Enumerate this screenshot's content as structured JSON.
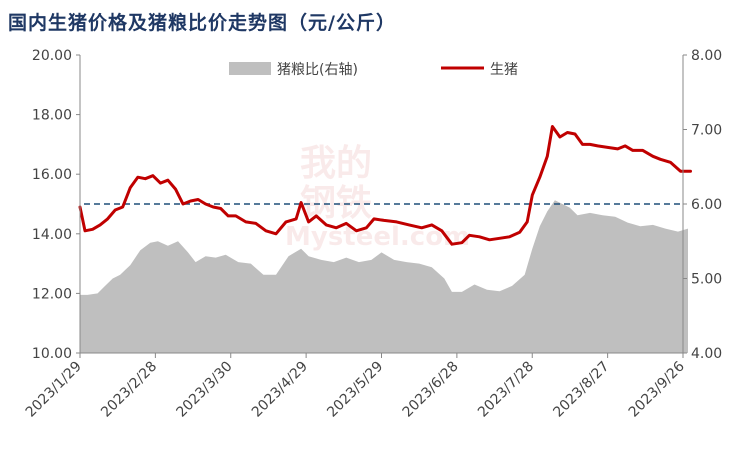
{
  "chart_data": {
    "type": "line",
    "title": "国内生猪价格及猪粮比价走势图（元/公斤）",
    "watermark": {
      "line1": "我的",
      "line2": "钢铁",
      "line3": "Mysteel.com"
    },
    "colors": {
      "line": "#c00000",
      "area": "#bfbfbf",
      "dashed": "#1f4e79",
      "title": "#1f3864"
    },
    "x_tick_labels": [
      "2023/1/29",
      "2023/2/28",
      "2023/3/30",
      "2023/4/29",
      "2023/5/29",
      "2023/6/28",
      "2023/7/28",
      "2023/8/27",
      "2023/9/26"
    ],
    "x_tick_dates": [
      "2023-01-29",
      "2023-02-28",
      "2023-03-30",
      "2023-04-29",
      "2023-05-29",
      "2023-06-28",
      "2023-07-28",
      "2023-08-27",
      "2023-09-26"
    ],
    "y_left": {
      "min": 10,
      "max": 20,
      "ticks": [
        "10.00",
        "12.00",
        "14.00",
        "16.00",
        "18.00",
        "20.00"
      ]
    },
    "y_right": {
      "min": 4,
      "max": 8,
      "ticks": [
        "4.00",
        "5.00",
        "6.00",
        "7.00",
        "8.00"
      ]
    },
    "legend_position": "top-center",
    "reference_line": {
      "axis": "right",
      "value": 6.0,
      "style": "dashed"
    },
    "series": [
      {
        "name": "猪粮比(右轴)",
        "type": "area",
        "axis": "right",
        "points": [
          [
            "2023-01-29",
            4.78
          ],
          [
            "2023-02-01",
            4.78
          ],
          [
            "2023-02-05",
            4.8
          ],
          [
            "2023-02-08",
            4.9
          ],
          [
            "2023-02-11",
            5.0
          ],
          [
            "2023-02-14",
            5.05
          ],
          [
            "2023-02-18",
            5.18
          ],
          [
            "2023-02-22",
            5.38
          ],
          [
            "2023-02-26",
            5.48
          ],
          [
            "2023-03-01",
            5.5
          ],
          [
            "2023-03-05",
            5.44
          ],
          [
            "2023-03-09",
            5.5
          ],
          [
            "2023-03-13",
            5.35
          ],
          [
            "2023-03-16",
            5.22
          ],
          [
            "2023-03-20",
            5.3
          ],
          [
            "2023-03-24",
            5.28
          ],
          [
            "2023-03-28",
            5.32
          ],
          [
            "2023-04-02",
            5.22
          ],
          [
            "2023-04-07",
            5.2
          ],
          [
            "2023-04-12",
            5.05
          ],
          [
            "2023-04-17",
            5.05
          ],
          [
            "2023-04-22",
            5.3
          ],
          [
            "2023-04-27",
            5.4
          ],
          [
            "2023-04-30",
            5.3
          ],
          [
            "2023-05-05",
            5.25
          ],
          [
            "2023-05-10",
            5.22
          ],
          [
            "2023-05-15",
            5.28
          ],
          [
            "2023-05-20",
            5.22
          ],
          [
            "2023-05-25",
            5.25
          ],
          [
            "2023-05-29",
            5.35
          ],
          [
            "2023-06-03",
            5.25
          ],
          [
            "2023-06-08",
            5.22
          ],
          [
            "2023-06-13",
            5.2
          ],
          [
            "2023-06-18",
            5.15
          ],
          [
            "2023-06-23",
            5.0
          ],
          [
            "2023-06-26",
            4.82
          ],
          [
            "2023-06-30",
            4.82
          ],
          [
            "2023-07-05",
            4.92
          ],
          [
            "2023-07-10",
            4.85
          ],
          [
            "2023-07-15",
            4.83
          ],
          [
            "2023-07-20",
            4.9
          ],
          [
            "2023-07-25",
            5.05
          ],
          [
            "2023-07-28",
            5.4
          ],
          [
            "2023-07-31",
            5.7
          ],
          [
            "2023-08-03",
            5.9
          ],
          [
            "2023-08-06",
            6.05
          ],
          [
            "2023-08-09",
            6.0
          ],
          [
            "2023-08-12",
            5.95
          ],
          [
            "2023-08-15",
            5.85
          ],
          [
            "2023-08-20",
            5.88
          ],
          [
            "2023-08-25",
            5.85
          ],
          [
            "2023-08-30",
            5.83
          ],
          [
            "2023-09-04",
            5.75
          ],
          [
            "2023-09-09",
            5.7
          ],
          [
            "2023-09-14",
            5.72
          ],
          [
            "2023-09-19",
            5.67
          ],
          [
            "2023-09-24",
            5.63
          ],
          [
            "2023-09-28",
            5.67
          ]
        ]
      },
      {
        "name": "生猪",
        "type": "line",
        "axis": "left",
        "points": [
          [
            "2023-01-29",
            14.9
          ],
          [
            "2023-01-31",
            14.1
          ],
          [
            "2023-02-03",
            14.15
          ],
          [
            "2023-02-06",
            14.3
          ],
          [
            "2023-02-09",
            14.5
          ],
          [
            "2023-02-12",
            14.8
          ],
          [
            "2023-02-15",
            14.9
          ],
          [
            "2023-02-18",
            15.55
          ],
          [
            "2023-02-21",
            15.9
          ],
          [
            "2023-02-24",
            15.85
          ],
          [
            "2023-02-27",
            15.95
          ],
          [
            "2023-03-02",
            15.7
          ],
          [
            "2023-03-05",
            15.8
          ],
          [
            "2023-03-08",
            15.5
          ],
          [
            "2023-03-11",
            15.0
          ],
          [
            "2023-03-14",
            15.1
          ],
          [
            "2023-03-17",
            15.15
          ],
          [
            "2023-03-20",
            15.0
          ],
          [
            "2023-03-23",
            14.9
          ],
          [
            "2023-03-26",
            14.85
          ],
          [
            "2023-03-29",
            14.6
          ],
          [
            "2023-04-01",
            14.6
          ],
          [
            "2023-04-05",
            14.4
          ],
          [
            "2023-04-09",
            14.35
          ],
          [
            "2023-04-13",
            14.1
          ],
          [
            "2023-04-17",
            14.0
          ],
          [
            "2023-04-21",
            14.4
          ],
          [
            "2023-04-25",
            14.5
          ],
          [
            "2023-04-27",
            15.05
          ],
          [
            "2023-04-30",
            14.4
          ],
          [
            "2023-05-03",
            14.6
          ],
          [
            "2023-05-07",
            14.3
          ],
          [
            "2023-05-11",
            14.2
          ],
          [
            "2023-05-15",
            14.35
          ],
          [
            "2023-05-19",
            14.1
          ],
          [
            "2023-05-23",
            14.2
          ],
          [
            "2023-05-26",
            14.5
          ],
          [
            "2023-05-30",
            14.45
          ],
          [
            "2023-06-04",
            14.4
          ],
          [
            "2023-06-09",
            14.3
          ],
          [
            "2023-06-14",
            14.2
          ],
          [
            "2023-06-18",
            14.3
          ],
          [
            "2023-06-22",
            14.1
          ],
          [
            "2023-06-26",
            13.65
          ],
          [
            "2023-06-30",
            13.7
          ],
          [
            "2023-07-03",
            13.95
          ],
          [
            "2023-07-07",
            13.9
          ],
          [
            "2023-07-11",
            13.8
          ],
          [
            "2023-07-15",
            13.85
          ],
          [
            "2023-07-19",
            13.9
          ],
          [
            "2023-07-23",
            14.05
          ],
          [
            "2023-07-26",
            14.4
          ],
          [
            "2023-07-28",
            15.3
          ],
          [
            "2023-07-31",
            15.9
          ],
          [
            "2023-08-03",
            16.6
          ],
          [
            "2023-08-05",
            17.6
          ],
          [
            "2023-08-08",
            17.25
          ],
          [
            "2023-08-11",
            17.4
          ],
          [
            "2023-08-14",
            17.35
          ],
          [
            "2023-08-17",
            17.0
          ],
          [
            "2023-08-20",
            17.0
          ],
          [
            "2023-08-23",
            16.95
          ],
          [
            "2023-08-27",
            16.9
          ],
          [
            "2023-08-31",
            16.85
          ],
          [
            "2023-09-03",
            16.95
          ],
          [
            "2023-09-06",
            16.8
          ],
          [
            "2023-09-10",
            16.8
          ],
          [
            "2023-09-14",
            16.6
          ],
          [
            "2023-09-17",
            16.5
          ],
          [
            "2023-09-21",
            16.4
          ],
          [
            "2023-09-25",
            16.1
          ],
          [
            "2023-09-27",
            16.1
          ],
          [
            "2023-09-29",
            16.1
          ]
        ]
      }
    ]
  }
}
